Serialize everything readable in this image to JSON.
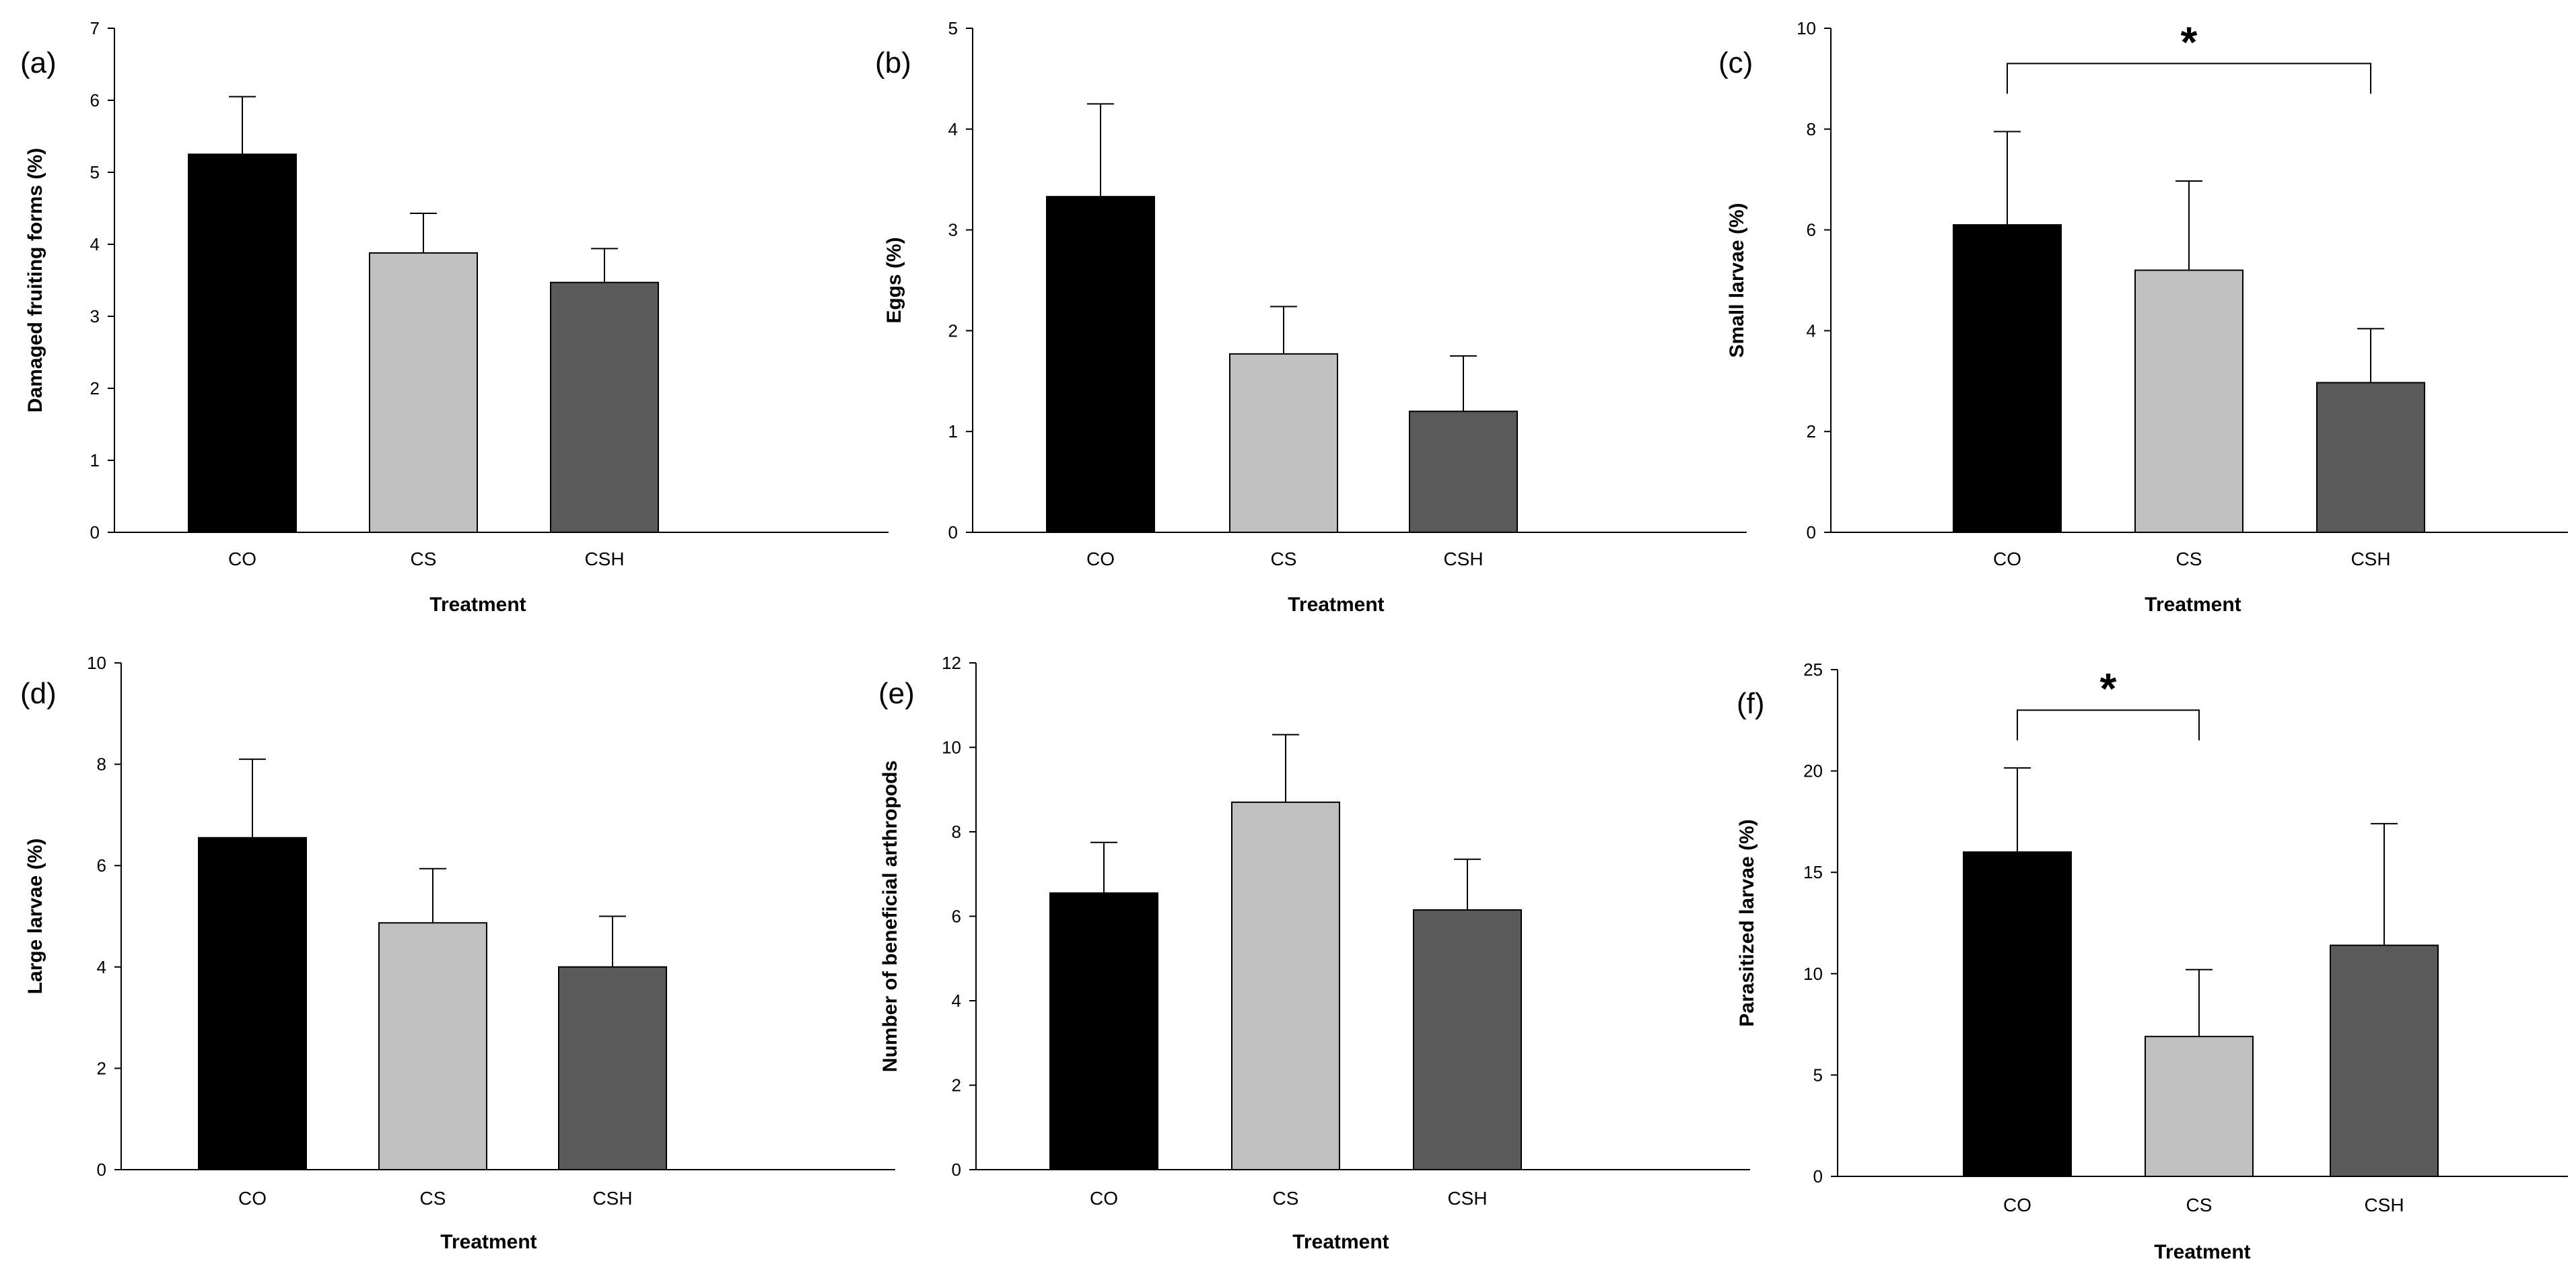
{
  "figure": {
    "colors": {
      "CO": "#000000",
      "CS": "#c0c0c0",
      "CSH": "#5a5a5a"
    }
  },
  "chart_data": [
    {
      "type": "bar",
      "panel": "(a)",
      "categories": [
        "CO",
        "CS",
        "CSH"
      ],
      "values": [
        5.25,
        3.88,
        3.47
      ],
      "errors": [
        0.8,
        0.55,
        0.47
      ],
      "xlabel": "Treatment",
      "ylabel": "Damaged fruiting forms (%)",
      "ylim": [
        0,
        7
      ],
      "yticks": [
        0,
        1,
        2,
        3,
        4,
        5,
        6,
        7
      ],
      "significance": []
    },
    {
      "type": "bar",
      "panel": "(b)",
      "categories": [
        "CO",
        "CS",
        "CSH"
      ],
      "values": [
        3.33,
        1.77,
        1.2
      ],
      "errors": [
        0.92,
        0.47,
        0.55
      ],
      "xlabel": "Treatment",
      "ylabel": "Eggs (%)",
      "ylim": [
        0,
        5
      ],
      "yticks": [
        0,
        1,
        2,
        3,
        4,
        5
      ],
      "significance": []
    },
    {
      "type": "bar",
      "panel": "(c)",
      "categories": [
        "CO",
        "CS",
        "CSH"
      ],
      "values": [
        6.1,
        5.2,
        2.97
      ],
      "errors": [
        1.85,
        1.77,
        1.07
      ],
      "xlabel": "Treatment",
      "ylabel": "Small larvae (%)",
      "ylim": [
        0,
        10
      ],
      "yticks": [
        0,
        2,
        4,
        6,
        8,
        10
      ],
      "significance": [
        {
          "from": "CO",
          "to": "CSH",
          "y": 9.3,
          "label": "*"
        }
      ]
    },
    {
      "type": "bar",
      "panel": "(d)",
      "categories": [
        "CO",
        "CS",
        "CSH"
      ],
      "values": [
        6.55,
        4.87,
        4.0
      ],
      "errors": [
        1.55,
        1.07,
        1.0
      ],
      "xlabel": "Treatment",
      "ylabel": "Large larvae (%)",
      "ylim": [
        0,
        10
      ],
      "yticks": [
        0,
        2,
        4,
        6,
        8,
        10
      ],
      "significance": []
    },
    {
      "type": "bar",
      "panel": "(e)",
      "categories": [
        "CO",
        "CS",
        "CSH"
      ],
      "values": [
        6.55,
        8.7,
        6.15
      ],
      "errors": [
        1.2,
        1.6,
        1.2
      ],
      "xlabel": "Treatment",
      "ylabel": "Number of beneficial arthropods",
      "ylim": [
        0,
        12
      ],
      "yticks": [
        0,
        2,
        4,
        6,
        8,
        10,
        12
      ],
      "significance": []
    },
    {
      "type": "bar",
      "panel": "(f)",
      "categories": [
        "CO",
        "CS",
        "CSH"
      ],
      "values": [
        16.0,
        6.9,
        11.4
      ],
      "errors": [
        4.15,
        3.3,
        6.0
      ],
      "xlabel": "Treatment",
      "ylabel": "Parasitized larvae (%)",
      "ylim": [
        0,
        25
      ],
      "yticks": [
        0,
        5,
        10,
        15,
        20,
        25
      ],
      "significance": [
        {
          "from": "CO",
          "to": "CS",
          "y": 23.0,
          "label": "*"
        }
      ]
    }
  ]
}
